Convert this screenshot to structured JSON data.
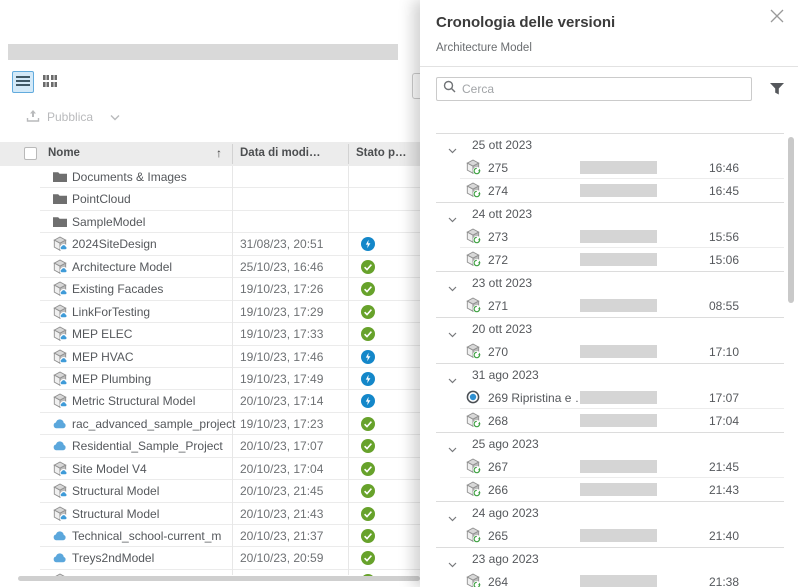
{
  "colors": {
    "status_published_green": "#67a22b",
    "status_pending_blue": "#1487c9",
    "cloud_icon_blue": "#5ba7dc",
    "selected_toggle_bg": "#d3e9f8",
    "selected_toggle_border": "#62abdd",
    "placeholder_gray": "#d9d9d9",
    "header_bg": "#ececec"
  },
  "left": {
    "toolbar": {
      "publish_label": "Pubblica"
    },
    "table": {
      "columns": {
        "name": "Nome",
        "modified": "Data di modi…",
        "status": "Stato p…"
      },
      "sort_icon": "↑",
      "rows": [
        {
          "icon": "folder",
          "name": "Documents & Images",
          "modified": "",
          "status": ""
        },
        {
          "icon": "folder",
          "name": "PointCloud",
          "modified": "",
          "status": ""
        },
        {
          "icon": "folder",
          "name": "SampleModel",
          "modified": "",
          "status": ""
        },
        {
          "icon": "revit",
          "name": "2024SiteDesign",
          "modified": "31/08/23, 20:51",
          "status": "pending"
        },
        {
          "icon": "revit",
          "name": "Architecture Model",
          "modified": "25/10/23, 16:46",
          "status": "published"
        },
        {
          "icon": "revit",
          "name": "Existing Facades",
          "modified": "19/10/23, 17:26",
          "status": "published"
        },
        {
          "icon": "revit",
          "name": "LinkForTesting",
          "modified": "19/10/23, 17:29",
          "status": "published"
        },
        {
          "icon": "revit",
          "name": "MEP ELEC",
          "modified": "19/10/23, 17:33",
          "status": "published"
        },
        {
          "icon": "revit",
          "name": "MEP HVAC",
          "modified": "19/10/23, 17:46",
          "status": "pending"
        },
        {
          "icon": "revit",
          "name": "MEP Plumbing",
          "modified": "19/10/23, 17:49",
          "status": "pending"
        },
        {
          "icon": "revit",
          "name": "Metric Structural Model",
          "modified": "20/10/23, 17:14",
          "status": "pending"
        },
        {
          "icon": "cloud",
          "name": "rac_advanced_sample_project",
          "modified": "19/10/23, 17:23",
          "status": "published"
        },
        {
          "icon": "cloud",
          "name": "Residential_Sample_Project",
          "modified": "20/10/23, 17:07",
          "status": "published"
        },
        {
          "icon": "revit",
          "name": "Site Model V4",
          "modified": "20/10/23, 17:04",
          "status": "published"
        },
        {
          "icon": "revit",
          "name": "Structural Model",
          "modified": "20/10/23, 21:45",
          "status": "published"
        },
        {
          "icon": "revit",
          "name": "Structural Model",
          "modified": "20/10/23, 21:43",
          "status": "published"
        },
        {
          "icon": "cloud",
          "name": "Technical_school-current_m",
          "modified": "20/10/23, 21:37",
          "status": "published"
        },
        {
          "icon": "cloud",
          "name": "Treys2ndModel",
          "modified": "20/10/23, 20:59",
          "status": "published"
        },
        {
          "icon": "revit",
          "name": "",
          "modified": "",
          "status": "published"
        }
      ]
    }
  },
  "panel": {
    "title": "Cronologia delle versioni",
    "subtitle": "Architecture Model",
    "search_placeholder": "Cerca",
    "groups": [
      {
        "date": "25 ott 2023",
        "versions": [
          {
            "icon": "version",
            "label": "275",
            "time": "16:46"
          },
          {
            "icon": "version",
            "label": "274",
            "time": "16:45"
          }
        ]
      },
      {
        "date": "24 ott 2023",
        "versions": [
          {
            "icon": "version",
            "label": "273",
            "time": "15:56"
          },
          {
            "icon": "version",
            "label": "272",
            "time": "15:06"
          }
        ]
      },
      {
        "date": "23 ott 2023",
        "versions": [
          {
            "icon": "version",
            "label": "271",
            "time": "08:55"
          }
        ]
      },
      {
        "date": "20 ott 2023",
        "versions": [
          {
            "icon": "version",
            "label": "270",
            "time": "17:10"
          }
        ]
      },
      {
        "date": "31 ago 2023",
        "versions": [
          {
            "icon": "restore",
            "label": "269 Ripristina e …",
            "time": "17:07"
          },
          {
            "icon": "version",
            "label": "268",
            "time": "17:04"
          }
        ]
      },
      {
        "date": "25 ago 2023",
        "versions": [
          {
            "icon": "version",
            "label": "267",
            "time": "21:45"
          },
          {
            "icon": "version",
            "label": "266",
            "time": "21:43"
          }
        ]
      },
      {
        "date": "24 ago 2023",
        "versions": [
          {
            "icon": "version",
            "label": "265",
            "time": "21:40"
          }
        ]
      },
      {
        "date": "23 ago 2023",
        "versions": [
          {
            "icon": "version",
            "label": "264",
            "time": "21:38"
          }
        ]
      }
    ]
  }
}
